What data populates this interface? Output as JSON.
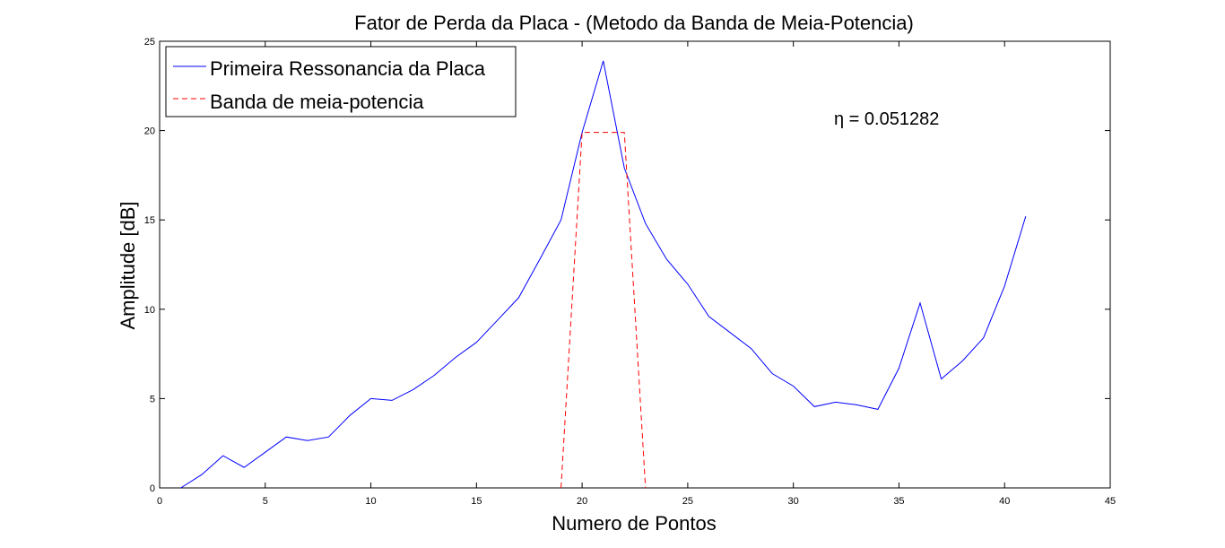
{
  "chart_data": {
    "type": "line",
    "title": "Fator de Perda da Placa - (Metodo da Banda de Meia-Potencia)",
    "xlabel": "Numero de Pontos",
    "ylabel": "Amplitude [dB]",
    "xlim": [
      0,
      45
    ],
    "ylim": [
      0,
      25
    ],
    "xticks": [
      0,
      5,
      10,
      15,
      20,
      25,
      30,
      35,
      40,
      45
    ],
    "yticks": [
      0,
      5,
      10,
      15,
      20,
      25
    ],
    "grid": false,
    "legend_position": "top-left",
    "annotation": "η = 0.051282",
    "series": [
      {
        "name": "Primeira Ressonancia da Placa",
        "color": "#0000ff",
        "style": "solid",
        "x": [
          1,
          2,
          3,
          4,
          5,
          6,
          7,
          8,
          9,
          10,
          11,
          12,
          13,
          14,
          15,
          16,
          17,
          18,
          19,
          20,
          21,
          22,
          23,
          24,
          25,
          26,
          27,
          28,
          29,
          30,
          31,
          32,
          33,
          34,
          35,
          36,
          37,
          38,
          39,
          40,
          41
        ],
        "y": [
          0.0,
          0.75,
          1.8,
          1.15,
          2.0,
          2.85,
          2.65,
          2.85,
          4.05,
          5.0,
          4.9,
          5.5,
          6.3,
          7.3,
          8.15,
          9.4,
          10.65,
          12.8,
          15.0,
          19.9,
          23.9,
          17.9,
          14.8,
          12.8,
          11.4,
          9.6,
          8.7,
          7.8,
          6.4,
          5.7,
          4.55,
          4.8,
          4.65,
          4.4,
          6.7,
          10.35,
          6.1,
          7.1,
          8.4,
          11.3,
          15.2
        ]
      },
      {
        "name": "Banda de meia-potencia",
        "color": "#ff0000",
        "style": "dashed",
        "x": [
          19,
          20,
          22,
          23
        ],
        "y": [
          0,
          19.9,
          19.9,
          0
        ]
      }
    ]
  }
}
